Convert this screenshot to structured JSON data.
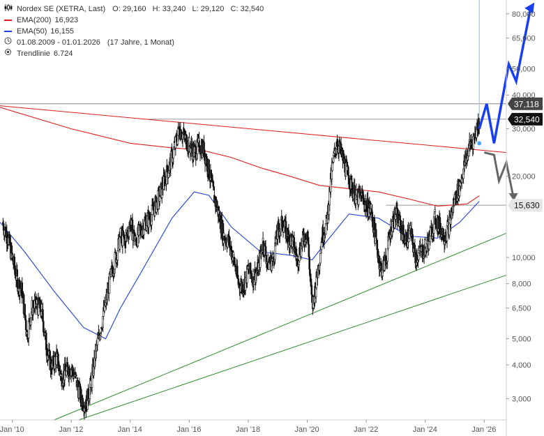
{
  "legend": {
    "instrument": "Nordex SE (XETRA, Last)",
    "ohlc": "O: 29,160   H: 33,240   L: 29,120   C: 32,540",
    "ema200_label": "EMA(200)",
    "ema200_value": "16,923",
    "ema50_label": "EMA(50)",
    "ema50_value": "16,155",
    "period": "01.08.2009 - 01.01.2026",
    "period_note": "(17 Jahre, 1 Monat)",
    "trend_label": "Trendlinie",
    "trend_value": "6.724"
  },
  "colors": {
    "candle": "#111111",
    "ema200": "#e01c1c",
    "ema50": "#1f3fe0",
    "trend_green": "#2e8b2e",
    "resistance_red": "#e01c1c",
    "forecast_up": "#1a3ff0",
    "forecast_down": "#666666",
    "hline": "#777777",
    "cursor": "#8fbde8"
  },
  "price_tags": {
    "p37118": "37,118",
    "p32540": "32,540",
    "p15630": "15,630"
  },
  "chart_data": {
    "type": "candlestick",
    "y_scale": "log",
    "ylim": [
      2500,
      90000
    ],
    "xlim": [
      "2009-08",
      "2026-10"
    ],
    "x_ticks": [
      "Jan '10",
      "Jan '12",
      "Jan '14",
      "Jan '16",
      "Jan '18",
      "Jan '20",
      "Jan '22",
      "Jan '24",
      "Jan '26"
    ],
    "y_ticks": [
      "80,000",
      "65,000",
      "50,000",
      "40,000",
      "30,000",
      "20,000",
      "10,000",
      "8,000",
      "6,500",
      "5,000",
      "4,000",
      "3,000"
    ],
    "y_tick_values": [
      80000,
      65000,
      50000,
      40000,
      30000,
      20000,
      10000,
      8000,
      6500,
      5000,
      4000,
      3000
    ],
    "close_series": [
      [
        "2009-09",
        13500
      ],
      [
        "2009-11",
        12000
      ],
      [
        "2010-01",
        10000
      ],
      [
        "2010-03",
        8200
      ],
      [
        "2010-05",
        7500
      ],
      [
        "2010-07",
        5200
      ],
      [
        "2010-09",
        6500
      ],
      [
        "2010-11",
        6700
      ],
      [
        "2011-01",
        6300
      ],
      [
        "2011-03",
        4600
      ],
      [
        "2011-05",
        3900
      ],
      [
        "2011-07",
        4300
      ],
      [
        "2011-09",
        3600
      ],
      [
        "2011-11",
        3800
      ],
      [
        "2012-01",
        3900
      ],
      [
        "2012-03",
        3500
      ],
      [
        "2012-05",
        3000
      ],
      [
        "2012-07",
        2850
      ],
      [
        "2012-09",
        3400
      ],
      [
        "2012-11",
        4500
      ],
      [
        "2013-01",
        5500
      ],
      [
        "2013-03",
        6800
      ],
      [
        "2013-05",
        8500
      ],
      [
        "2013-07",
        10000
      ],
      [
        "2013-09",
        12000
      ],
      [
        "2013-11",
        11500
      ],
      [
        "2014-01",
        13500
      ],
      [
        "2014-03",
        11500
      ],
      [
        "2014-05",
        12500
      ],
      [
        "2014-07",
        13500
      ],
      [
        "2014-09",
        14000
      ],
      [
        "2014-11",
        15500
      ],
      [
        "2015-01",
        17000
      ],
      [
        "2015-03",
        19500
      ],
      [
        "2015-05",
        22000
      ],
      [
        "2015-07",
        25500
      ],
      [
        "2015-09",
        30000
      ],
      [
        "2015-11",
        28000
      ],
      [
        "2016-01",
        26000
      ],
      [
        "2016-03",
        24500
      ],
      [
        "2016-05",
        26000
      ],
      [
        "2016-07",
        25000
      ],
      [
        "2016-09",
        21000
      ],
      [
        "2016-11",
        17000
      ],
      [
        "2017-01",
        14500
      ],
      [
        "2017-03",
        12000
      ],
      [
        "2017-05",
        11500
      ],
      [
        "2017-07",
        10000
      ],
      [
        "2017-09",
        8000
      ],
      [
        "2017-11",
        7800
      ],
      [
        "2018-01",
        9000
      ],
      [
        "2018-03",
        8500
      ],
      [
        "2018-05",
        9000
      ],
      [
        "2018-07",
        11500
      ],
      [
        "2018-09",
        9500
      ],
      [
        "2018-11",
        9800
      ],
      [
        "2019-01",
        12500
      ],
      [
        "2019-03",
        13500
      ],
      [
        "2019-05",
        12000
      ],
      [
        "2019-07",
        11500
      ],
      [
        "2019-09",
        9800
      ],
      [
        "2019-11",
        11500
      ],
      [
        "2020-01",
        12500
      ],
      [
        "2020-03",
        6500
      ],
      [
        "2020-05",
        8500
      ],
      [
        "2020-07",
        12000
      ],
      [
        "2020-09",
        13500
      ],
      [
        "2020-11",
        21000
      ],
      [
        "2021-01",
        27000
      ],
      [
        "2021-03",
        24000
      ],
      [
        "2021-05",
        21000
      ],
      [
        "2021-07",
        18500
      ],
      [
        "2021-09",
        16500
      ],
      [
        "2021-11",
        17000
      ],
      [
        "2022-01",
        15500
      ],
      [
        "2022-03",
        15000
      ],
      [
        "2022-05",
        11500
      ],
      [
        "2022-07",
        9000
      ],
      [
        "2022-09",
        9800
      ],
      [
        "2022-11",
        13000
      ],
      [
        "2023-01",
        14500
      ],
      [
        "2023-03",
        13000
      ],
      [
        "2023-05",
        11500
      ],
      [
        "2023-07",
        12500
      ],
      [
        "2023-09",
        10000
      ],
      [
        "2023-11",
        10500
      ],
      [
        "2024-01",
        10800
      ],
      [
        "2024-03",
        12000
      ],
      [
        "2024-05",
        14000
      ],
      [
        "2024-07",
        13000
      ],
      [
        "2024-09",
        12000
      ],
      [
        "2024-11",
        13500
      ],
      [
        "2025-01",
        16500
      ],
      [
        "2025-03",
        18500
      ],
      [
        "2025-05",
        22000
      ],
      [
        "2025-07",
        26000
      ],
      [
        "2025-09",
        28000
      ],
      [
        "2025-11",
        32540
      ]
    ],
    "ema200_series": [
      [
        "2009-08",
        36000
      ],
      [
        "2012-01",
        30000
      ],
      [
        "2014-01",
        26500
      ],
      [
        "2015-06",
        25500
      ],
      [
        "2016-06",
        25000
      ],
      [
        "2017-06",
        23500
      ],
      [
        "2018-06",
        21500
      ],
      [
        "2019-06",
        20000
      ],
      [
        "2020-06",
        18500
      ],
      [
        "2021-06",
        18000
      ],
      [
        "2022-06",
        17500
      ],
      [
        "2023-06",
        16500
      ],
      [
        "2024-06",
        15500
      ],
      [
        "2025-06",
        15800
      ],
      [
        "2025-11",
        16923
      ]
    ],
    "ema50_series": [
      [
        "2009-08",
        13500
      ],
      [
        "2010-06",
        10500
      ],
      [
        "2011-06",
        7500
      ],
      [
        "2012-06",
        5500
      ],
      [
        "2013-03",
        5000
      ],
      [
        "2013-09",
        6500
      ],
      [
        "2014-06",
        9000
      ],
      [
        "2015-06",
        14000
      ],
      [
        "2016-03",
        17500
      ],
      [
        "2016-09",
        17000
      ],
      [
        "2017-06",
        13000
      ],
      [
        "2018-06",
        10500
      ],
      [
        "2019-06",
        10200
      ],
      [
        "2020-03",
        9800
      ],
      [
        "2020-09",
        11500
      ],
      [
        "2021-06",
        14500
      ],
      [
        "2022-06",
        14000
      ],
      [
        "2023-06",
        12000
      ],
      [
        "2024-06",
        11800
      ],
      [
        "2025-03",
        13500
      ],
      [
        "2025-11",
        16155
      ]
    ],
    "levels": [
      37118,
      32540,
      15630
    ],
    "annotations": [
      "Trendlinie 6.724"
    ]
  }
}
